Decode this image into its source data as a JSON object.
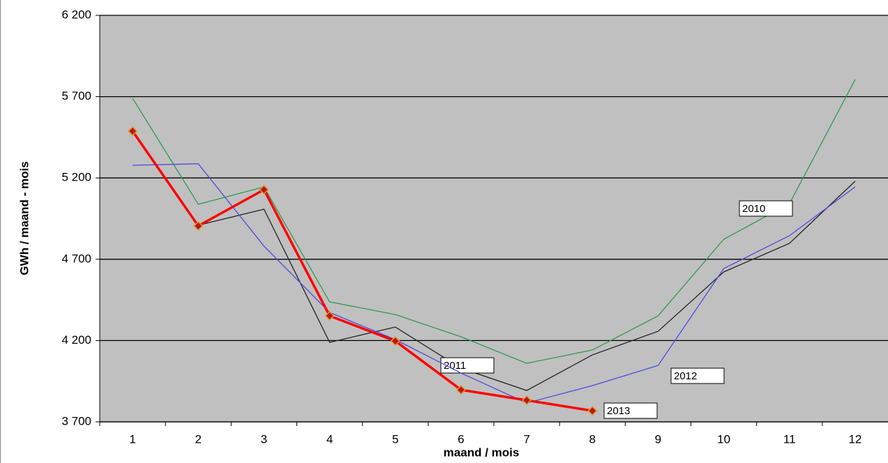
{
  "chart_data": {
    "type": "line",
    "x_label": "maand  /  mois",
    "y_label": "GWh / maand - mois",
    "categories": [
      "1",
      "2",
      "3",
      "4",
      "5",
      "6",
      "7",
      "8",
      "9",
      "10",
      "11",
      "12"
    ],
    "series": [
      {
        "name": "2010",
        "color": "#2e9a4e",
        "values": [
          5690,
          5038,
          5145,
          4438,
          4360,
          4223,
          4060,
          4142,
          4352,
          4823,
          5042,
          5805
        ]
      },
      {
        "name": "2011",
        "color": "#222222",
        "values": [
          5480,
          4909,
          5008,
          4189,
          4283,
          4030,
          3893,
          4112,
          4257,
          4622,
          4798,
          5180
        ]
      },
      {
        "name": "2012",
        "color": "#4a4ae0",
        "values": [
          5278,
          5287,
          4781,
          4373,
          4206,
          4000,
          3816,
          3923,
          4047,
          4643,
          4845,
          5145
        ]
      },
      {
        "name": "2013",
        "color": "#ff0000",
        "values": [
          5488,
          4905,
          5128,
          4352,
          4197,
          3897,
          3833,
          3768,
          null,
          null,
          null,
          null
        ]
      }
    ],
    "ylim": [
      3700,
      6200
    ],
    "yticks": [
      {
        "value": 3700,
        "label": "3 700"
      },
      {
        "value": 4200,
        "label": "4 200"
      },
      {
        "value": 4700,
        "label": "4 700"
      },
      {
        "value": 5200,
        "label": "5 200"
      },
      {
        "value": 5700,
        "label": "5 700"
      },
      {
        "value": 6200,
        "label": "6 200"
      }
    ],
    "grid": true
  }
}
